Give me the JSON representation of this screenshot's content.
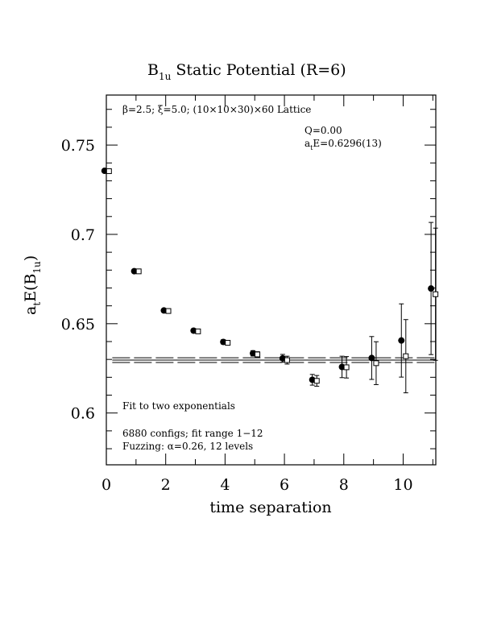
{
  "chart_data": {
    "type": "scatter",
    "title": "B",
    "title_sub": "1u",
    "title_rest": " Static Potential (R=6)",
    "xlabel": "time separation",
    "ylabel_main": "a",
    "ylabel_sub1": "t",
    "ylabel_mid": "E(B",
    "ylabel_sub2": "1u",
    "ylabel_end": ")",
    "xlim": [
      0,
      11.1
    ],
    "ylim": [
      0.571,
      0.778
    ],
    "x_ticks": [
      0,
      2,
      4,
      6,
      8,
      10
    ],
    "x_tick_labels": [
      "0",
      "2",
      "4",
      "6",
      "8",
      "10"
    ],
    "y_ticks": [
      0.6,
      0.65,
      0.7,
      0.75
    ],
    "y_tick_labels": [
      "0.6",
      "0.65",
      "0.7",
      "0.75"
    ],
    "annotations": {
      "lattice": "β=2.5; ξ=5.0; (10×10×30)×60 Lattice",
      "q": "Q=0.00",
      "energy_pre": "a",
      "energy_sub": "t",
      "energy_post": "E=0.6296(13)",
      "fit": "Fit to two exponentials",
      "configs": "6880 configs; fit range 1−12",
      "fuzzing": "Fuzzing: α=0.26, 12 levels"
    },
    "fit": {
      "value": 0.6296,
      "error": 0.0013,
      "x_range": [
        0.2,
        11.1
      ]
    },
    "series": [
      {
        "marker": "filled-circle",
        "points": [
          {
            "x": 0,
            "y": 0.7356,
            "err": 0.0004
          },
          {
            "x": 1,
            "y": 0.6794,
            "err": 0.0005
          },
          {
            "x": 2,
            "y": 0.6574,
            "err": 0.0008
          },
          {
            "x": 3,
            "y": 0.6461,
            "err": 0.001
          },
          {
            "x": 4,
            "y": 0.6398,
            "err": 0.0012
          },
          {
            "x": 5,
            "y": 0.6334,
            "err": 0.0015
          },
          {
            "x": 6,
            "y": 0.6306,
            "err": 0.0022
          },
          {
            "x": 7,
            "y": 0.6186,
            "err": 0.003
          },
          {
            "x": 8,
            "y": 0.6258,
            "err": 0.006
          },
          {
            "x": 9,
            "y": 0.6308,
            "err": 0.012
          },
          {
            "x": 10,
            "y": 0.6406,
            "err": 0.0205
          },
          {
            "x": 11,
            "y": 0.6697,
            "err": 0.037
          }
        ]
      },
      {
        "marker": "open-square",
        "points": [
          {
            "x": 0,
            "y": 0.7354,
            "err": 0.0004
          },
          {
            "x": 1,
            "y": 0.6793,
            "err": 0.0005
          },
          {
            "x": 2,
            "y": 0.6571,
            "err": 0.0008
          },
          {
            "x": 3,
            "y": 0.6457,
            "err": 0.001
          },
          {
            "x": 4,
            "y": 0.6393,
            "err": 0.0012
          },
          {
            "x": 5,
            "y": 0.6328,
            "err": 0.0015
          },
          {
            "x": 6,
            "y": 0.6296,
            "err": 0.0022
          },
          {
            "x": 7,
            "y": 0.618,
            "err": 0.003
          },
          {
            "x": 8,
            "y": 0.6256,
            "err": 0.006
          },
          {
            "x": 9,
            "y": 0.6279,
            "err": 0.012
          },
          {
            "x": 10,
            "y": 0.6318,
            "err": 0.0205
          },
          {
            "x": 11,
            "y": 0.6665,
            "err": 0.037
          }
        ]
      }
    ]
  }
}
